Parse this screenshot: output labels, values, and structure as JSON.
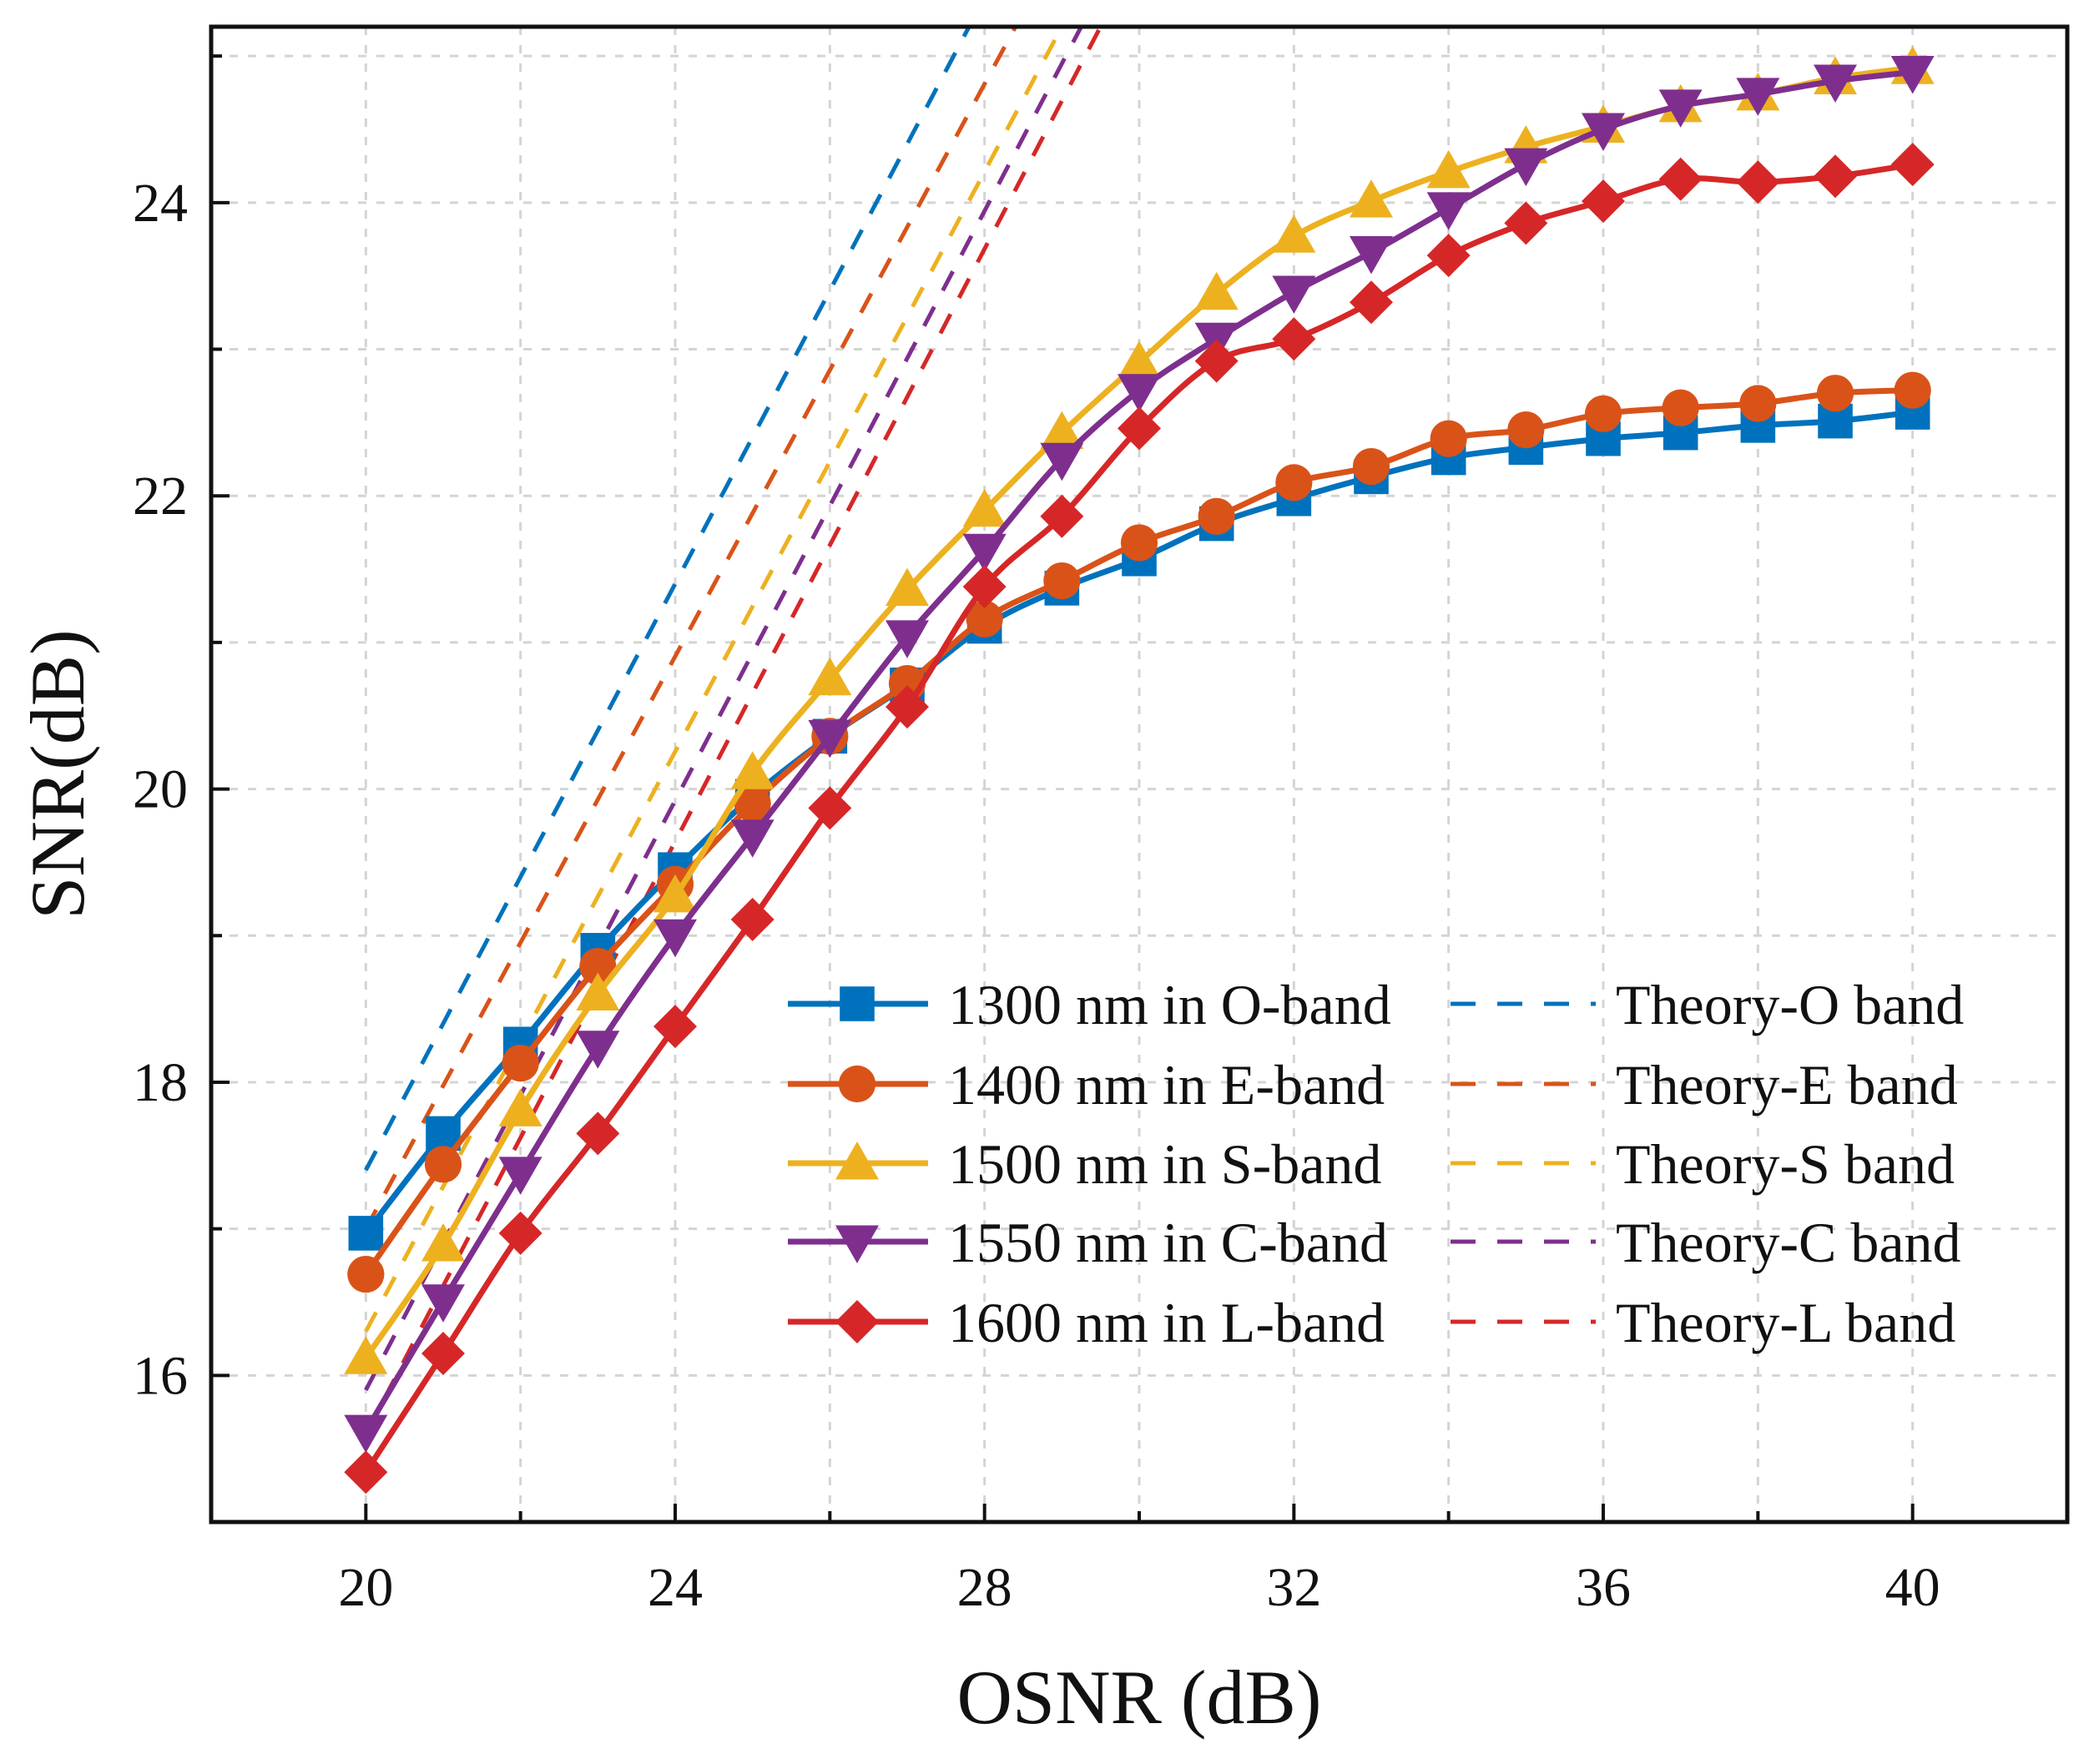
{
  "chart_data": {
    "type": "line",
    "title": "",
    "xlabel": "OSNR (dB)",
    "ylabel": "SNR(dB)",
    "xlim": [
      18,
      42
    ],
    "ylim": [
      15.0,
      25.2
    ],
    "xticks": [
      20,
      24,
      28,
      32,
      36,
      40
    ],
    "yticks": [
      16,
      18,
      20,
      22,
      24
    ],
    "grid": true,
    "legend_position": "bottom-right",
    "x": [
      20,
      21,
      22,
      23,
      24,
      25,
      26,
      27,
      28,
      29,
      30,
      31,
      32,
      33,
      34,
      35,
      36,
      37,
      38,
      39,
      40
    ],
    "series": [
      {
        "name": "1300 nm in O-band",
        "color": "#0072BD",
        "marker": "square",
        "values": [
          16.97,
          17.65,
          18.26,
          18.9,
          19.45,
          19.95,
          20.36,
          20.71,
          21.11,
          21.37,
          21.57,
          21.81,
          21.98,
          22.13,
          22.26,
          22.33,
          22.39,
          22.43,
          22.48,
          22.51,
          22.57
        ]
      },
      {
        "name": "1400 nm in E-band",
        "color": "#D95319",
        "marker": "circle",
        "values": [
          16.69,
          17.44,
          18.13,
          18.79,
          19.35,
          19.9,
          20.36,
          20.72,
          21.16,
          21.42,
          21.68,
          21.86,
          22.09,
          22.2,
          22.39,
          22.45,
          22.56,
          22.6,
          22.63,
          22.7,
          22.72
        ]
      },
      {
        "name": "1500 nm in S-band",
        "color": "#EDB120",
        "marker": "triangle-up",
        "values": [
          16.12,
          16.89,
          17.81,
          18.6,
          19.27,
          20.11,
          20.75,
          21.36,
          21.9,
          22.43,
          22.91,
          23.38,
          23.77,
          24.01,
          24.21,
          24.38,
          24.52,
          24.66,
          24.74,
          24.85,
          24.92
        ]
      },
      {
        "name": "1550 nm in C-band",
        "color": "#7E2F8E",
        "marker": "triangle-down",
        "values": [
          15.62,
          16.51,
          17.38,
          18.24,
          19.0,
          19.68,
          20.36,
          21.04,
          21.63,
          22.25,
          22.72,
          23.07,
          23.39,
          23.66,
          23.96,
          24.26,
          24.5,
          24.66,
          24.74,
          24.83,
          24.89
        ]
      },
      {
        "name": "1600 nm in L-band",
        "color": "#D62728",
        "marker": "diamond",
        "values": [
          15.34,
          16.15,
          16.97,
          17.65,
          18.38,
          19.11,
          19.87,
          20.56,
          21.38,
          21.86,
          22.46,
          22.92,
          23.07,
          23.32,
          23.64,
          23.86,
          24.01,
          24.16,
          24.14,
          24.18,
          24.26
        ]
      }
    ],
    "theory_series": [
      {
        "name": "Theory-O band",
        "color": "#0072BD",
        "x": [
          20,
          27.8
        ],
        "values": [
          17.4,
          25.2
        ]
      },
      {
        "name": "Theory-E band",
        "color": "#D95319",
        "x": [
          20,
          28.4
        ],
        "values": [
          17.0,
          25.2
        ]
      },
      {
        "name": "Theory-S band",
        "color": "#EDB120",
        "x": [
          20,
          29.0
        ],
        "values": [
          16.3,
          25.2
        ]
      },
      {
        "name": "Theory-C band",
        "color": "#7E2F8E",
        "x": [
          20,
          29.25
        ],
        "values": [
          15.9,
          25.2
        ]
      },
      {
        "name": "Theory-L band",
        "color": "#D62728",
        "x": [
          20,
          29.5
        ],
        "values": [
          15.6,
          25.2
        ]
      }
    ]
  }
}
